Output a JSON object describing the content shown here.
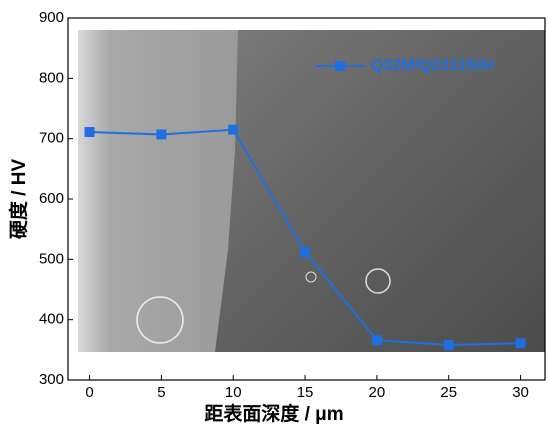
{
  "chart_data": {
    "type": "line",
    "x_label": "距表面深度 / μm",
    "y_label": "硬度 / HV",
    "x": [
      0,
      5,
      10,
      15,
      20,
      25,
      30
    ],
    "series": [
      {
        "name": "Q32M/Q2311NiH",
        "color": "#1f6fe0",
        "values": [
          711,
          707,
          715,
          512,
          366,
          358,
          361
        ]
      }
    ],
    "xlim": [
      -1.5,
      31.7
    ],
    "ylim": [
      300,
      900
    ],
    "xticks": [
      0,
      5,
      10,
      15,
      20,
      25,
      30
    ],
    "yticks": [
      300,
      400,
      500,
      600,
      700,
      800,
      900
    ],
    "legend": "upper right"
  }
}
